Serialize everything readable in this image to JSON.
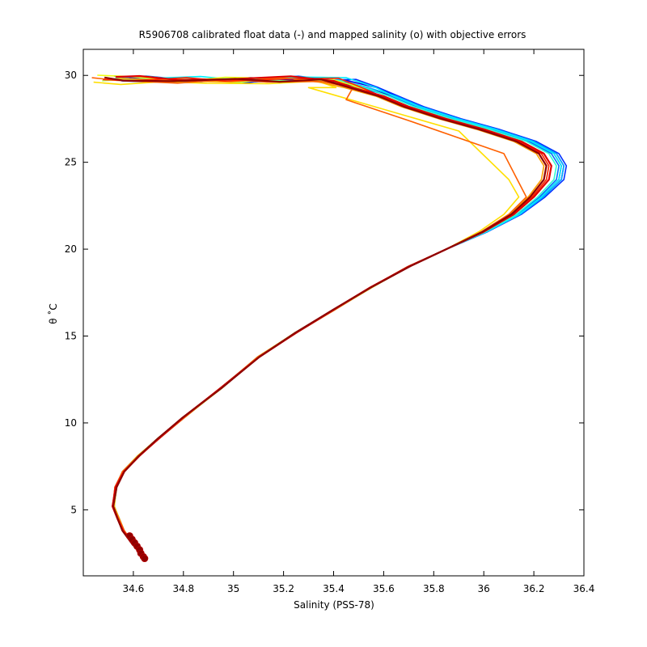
{
  "chart_data": {
    "type": "line",
    "title": "R5906708 calibrated float data (-) and mapped salinity (o) with objective errors",
    "xlabel": "Salinity (PSS-78)",
    "ylabel": "θ ˚C",
    "xlim": [
      34.4,
      36.4
    ],
    "ylim": [
      1.2,
      31.5
    ],
    "xticks": [
      "34.6",
      "34.8",
      "35",
      "35.2",
      "35.4",
      "35.6",
      "35.8",
      "36",
      "36.2",
      "36.4"
    ],
    "yticks": [
      "5",
      "10",
      "15",
      "20",
      "25",
      "30"
    ],
    "grid": false,
    "common_profile": [
      [
        34.65,
        2.2
      ],
      [
        34.6,
        3.0
      ],
      [
        34.56,
        3.8
      ],
      [
        34.54,
        4.5
      ],
      [
        34.52,
        5.2
      ],
      [
        34.53,
        6.3
      ],
      [
        34.56,
        7.2
      ],
      [
        34.62,
        8.1
      ],
      [
        34.7,
        9.1
      ],
      [
        34.8,
        10.3
      ],
      [
        34.95,
        12.0
      ],
      [
        35.1,
        13.8
      ],
      [
        35.25,
        15.2
      ],
      [
        35.4,
        16.5
      ],
      [
        35.55,
        17.8
      ],
      [
        35.7,
        19.0
      ],
      [
        35.85,
        20.0
      ],
      [
        36.0,
        21.0
      ],
      [
        36.12,
        22.0
      ],
      [
        36.2,
        23.0
      ],
      [
        36.26,
        24.0
      ],
      [
        36.27,
        24.8
      ],
      [
        36.24,
        25.5
      ],
      [
        36.15,
        26.2
      ],
      [
        36.0,
        26.9
      ],
      [
        35.85,
        27.5
      ],
      [
        35.7,
        28.2
      ],
      [
        35.6,
        28.8
      ],
      [
        35.5,
        29.3
      ],
      [
        35.4,
        29.7
      ],
      [
        35.2,
        29.75
      ],
      [
        35.0,
        29.7
      ],
      [
        34.8,
        29.7
      ],
      [
        34.6,
        29.75
      ],
      [
        34.5,
        29.8
      ]
    ],
    "series": [
      {
        "color": "#00008f",
        "ds": 0.04,
        "dsurf": 0.0
      },
      {
        "color": "#0000df",
        "ds": 0.05,
        "dsurf": 0.05
      },
      {
        "color": "#0030ff",
        "ds": 0.06,
        "dsurf": -0.03
      },
      {
        "color": "#0070ff",
        "ds": 0.03,
        "dsurf": 0.1
      },
      {
        "color": "#00b0ff",
        "ds": 0.05,
        "dsurf": 0.0
      },
      {
        "color": "#00efff",
        "ds": 0.04,
        "dsurf": 0.12
      },
      {
        "color": "#30ffcf",
        "ds": 0.02,
        "dsurf": 0.08
      },
      {
        "color": "#70ff8f",
        "ds": 0.0,
        "dsurf": 0.05
      },
      {
        "color": "#afff50",
        "ds": -0.01,
        "dsurf": 0.0
      },
      {
        "color": "#efff10",
        "ds": -0.02,
        "dsurf": 0.1
      },
      {
        "color": "#ffdf00",
        "ds": -0.08,
        "dsurf": -0.15,
        "kink": [
          [
            36.1,
            24.0
          ],
          [
            35.9,
            26.8
          ],
          [
            35.3,
            29.3
          ]
        ]
      },
      {
        "color": "#ff9f00",
        "ds": -0.03,
        "dsurf": 0.0
      },
      {
        "color": "#ff6000",
        "ds": -0.04,
        "dsurf": -0.05,
        "kink": [
          [
            36.08,
            25.5
          ],
          [
            35.7,
            27.4
          ],
          [
            35.45,
            28.6
          ]
        ]
      },
      {
        "color": "#ff2000",
        "ds": -0.01,
        "dsurf": 0.05
      },
      {
        "color": "#df0000",
        "ds": 0.0,
        "dsurf": 0.1
      },
      {
        "color": "#8f0000",
        "ds": -0.02,
        "dsurf": 0.0
      }
    ],
    "mapped_points": [
      [
        34.585,
        3.5
      ],
      [
        34.595,
        3.3
      ],
      [
        34.605,
        3.1
      ],
      [
        34.615,
        2.9
      ],
      [
        34.625,
        2.7
      ],
      [
        34.63,
        2.5
      ],
      [
        34.64,
        2.3
      ],
      [
        34.645,
        2.2
      ]
    ]
  }
}
